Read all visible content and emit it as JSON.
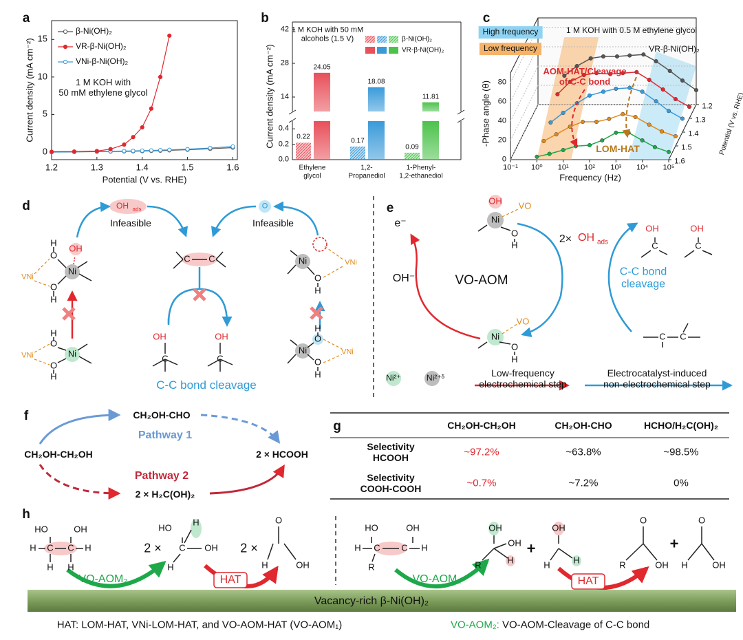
{
  "panel_labels": [
    "a",
    "b",
    "c",
    "d",
    "e",
    "f",
    "g",
    "h"
  ],
  "chart_data": [
    {
      "type": "line",
      "xlabel": "Potential (V vs. RHE)",
      "ylabel": "Current density (mA cm⁻²)",
      "annotation": "1 M KOH with\n50 mM ethylene glycol",
      "x": [
        1.2,
        1.25,
        1.3,
        1.33,
        1.36,
        1.38,
        1.4,
        1.42,
        1.44,
        1.46,
        1.5,
        1.55,
        1.6
      ],
      "series": [
        {
          "name": "β-Ni(OH)₂",
          "color": "#555555",
          "values": [
            0,
            0.03,
            0.06,
            0.08,
            0.1,
            0.12,
            0.14,
            0.17,
            0.2,
            0.24,
            0.32,
            0.45,
            0.6
          ]
        },
        {
          "name": "VR-β-Ni(OH)₂",
          "color": "#e0282e",
          "values": [
            0.05,
            0.08,
            0.15,
            0.4,
            1.0,
            2.0,
            3.3,
            5.8,
            10,
            15.5,
            null,
            null,
            null
          ]
        },
        {
          "name": "VNi-β-Ni(OH)₂",
          "color": "#3a9ad9",
          "values": [
            0.02,
            0.05,
            0.09,
            0.12,
            0.15,
            0.17,
            0.2,
            0.23,
            0.27,
            0.31,
            0.4,
            0.55,
            0.75
          ]
        }
      ],
      "xlim": [
        1.2,
        1.61
      ],
      "ylim": [
        -1,
        17.5
      ],
      "xticks": [
        1.2,
        1.3,
        1.4,
        1.5,
        1.6
      ],
      "yticks": [
        0,
        5,
        10,
        15
      ],
      "legend": "upper left"
    },
    {
      "type": "bar",
      "subtitle": "1 M KOH with 50 mM\nalcohols (1.5 V)",
      "ylabel": "Current density (mA cm⁻²)",
      "categories": [
        "Ethylene\nglycol",
        "1,2-\nPropanediol",
        "1-Phenyl-\n1,2-ethanediol"
      ],
      "category_colors": [
        "#e8505a",
        "#3a9ad9",
        "#4cc24c"
      ],
      "series": [
        {
          "name": "β-Ni(OH)₂",
          "hatched": true,
          "values": [
            0.22,
            0.17,
            0.09
          ]
        },
        {
          "name": "VR-β-Ni(OH)₂",
          "hatched": false,
          "values": [
            24.05,
            18.08,
            11.81
          ]
        }
      ],
      "ylim_lower": [
        0,
        0.5
      ],
      "yticks_lower": [
        {
          "value": 0,
          "label": "0.0"
        },
        0.2,
        0.4
      ],
      "ylim_upper": [
        8,
        42
      ],
      "yticks_upper": [
        14,
        28,
        42
      ],
      "legend": "upper right"
    },
    {
      "type": "waterfall",
      "xscale": "log",
      "xlabel": "Frequency (Hz)",
      "ylabel": "-Phase angle (θ)",
      "zlabel": "Potential (V vs. RHE)",
      "x": [
        1,
        3,
        10,
        30,
        100,
        300,
        1000,
        3000,
        10000,
        30000,
        100000
      ],
      "series": [
        {
          "z": 1.2,
          "color": "#555555",
          "values": [
            30,
            40,
            48,
            50,
            50,
            51,
            52,
            45,
            35,
            25,
            15
          ]
        },
        {
          "z": 1.3,
          "color": "#e0282e",
          "values": [
            25,
            38,
            45,
            47,
            46,
            47,
            48,
            40,
            30,
            20,
            12
          ]
        },
        {
          "z": 1.4,
          "color": "#3a9ad9",
          "values": [
            10,
            20,
            30,
            38,
            42,
            45,
            46,
            42,
            32,
            22,
            14
          ]
        },
        {
          "z": 1.5,
          "color": "#e08a1e",
          "values": [
            5,
            12,
            20,
            25,
            25,
            28,
            33,
            30,
            22,
            15,
            10
          ]
        },
        {
          "z": 1.6,
          "color": "#1ea84a",
          "values": [
            3,
            6,
            10,
            14,
            15,
            20,
            28,
            28,
            20,
            13,
            8
          ]
        }
      ],
      "xlim": [
        0.1,
        100000
      ],
      "xticks": [
        {
          "value": 0.1,
          "label": "10⁻¹"
        },
        {
          "value": 1,
          "label": "10⁰"
        },
        {
          "value": 10,
          "label": "10¹"
        },
        {
          "value": 100,
          "label": "10²"
        },
        {
          "value": 1000,
          "label": "10³"
        },
        {
          "value": 10000,
          "label": "10⁴"
        },
        {
          "value": 100000,
          "label": "10⁵"
        }
      ],
      "ylim": [
        0,
        90
      ],
      "yticks": [
        0,
        20,
        40,
        60,
        80
      ],
      "zticks": [
        1.2,
        1.3,
        1.4,
        1.5,
        1.6
      ],
      "legend_boxes": [
        {
          "label": "High frequency",
          "color": "#8fd3f2"
        },
        {
          "label": "Low frequency",
          "color": "#f5b36a"
        }
      ],
      "annotations": [
        "1 M KOH with 0.5 M ethylene glycol",
        "VR-β-Ni(OH)₂",
        "AOM-HAT/Cleavage\nof C-C bond",
        "LOM-HAT"
      ]
    }
  ],
  "diagram_d": {
    "texts": [
      "OH",
      "ads",
      "Infeasible",
      "O",
      "Infeasible",
      "C-C bond cleavage",
      "H",
      "O",
      "OH",
      "Ni",
      "O",
      "H",
      "VNi",
      "H",
      "O",
      "Ni",
      "O",
      "H",
      "VNi",
      "C",
      "C",
      "OH",
      "C",
      "OH",
      "C",
      "Ni",
      "VNi",
      "O",
      "H",
      "H",
      "O",
      "Ni",
      "O",
      "H",
      "VNi"
    ]
  },
  "diagram_e": {
    "texts": [
      "e⁻",
      "OH⁻",
      "VO-AOM",
      "2×",
      "OH",
      "ads",
      "C-C bond\ncleavage",
      "OH",
      "Ni",
      "VO",
      "O",
      "H",
      "Ni",
      "VO",
      "O",
      "H",
      "OH",
      "C",
      "OH",
      "C",
      "C",
      "C",
      "Ni²⁺",
      "Ni²⁺ᵟ",
      "Low-frequency\nelectrochemical step",
      "Electrocatalyst-induced\nnon-electrochemical step"
    ]
  },
  "diagram_f": {
    "texts": [
      "CH₂OH-CH₂OH",
      "CH₂OH-CHO",
      "Pathway 1",
      "2 × HCOOH",
      "Pathway 2",
      "2 × H₂C(OH)₂"
    ]
  },
  "table_g": {
    "columns": [
      "CH₂OH-CH₂OH",
      "CH₂OH-CHO",
      "HCHO/H₂C(OH)₂"
    ],
    "rows": [
      {
        "label": "Selectivity\nHCOOH",
        "cells": [
          "~97.2%",
          "~63.8%",
          "~98.5%"
        ]
      },
      {
        "label": "Selectivity\nCOOH-COOH",
        "cells": [
          "~0.7%",
          "~7.2%",
          "0%"
        ]
      }
    ]
  },
  "diagram_h": {
    "texts": [
      "HO",
      "OH",
      "H",
      "C",
      "C",
      "H",
      "H",
      "H",
      "2 ×",
      "HO",
      "H",
      "C",
      "OH",
      "H",
      "2 ×",
      "O",
      "H",
      "OH",
      "VO-AOM₂",
      "HAT",
      "HO",
      "OH",
      "H",
      "C",
      "C",
      "H",
      "R",
      "OH",
      "OH",
      "R",
      "H",
      "+",
      "OH",
      "H",
      "H",
      "O",
      "R",
      "OH",
      "+",
      "O",
      "H",
      "OH",
      "VO-AOM₂",
      "HAT"
    ],
    "bar_label": "Vacancy-rich β-Ni(OH)₂",
    "footer": [
      "HAT: LOM-HAT, VNi-LOM-HAT, and VO-AOM-HAT (VO-AOM₁)",
      "VO-AOM₂:",
      "VO-AOM-Cleavage of C-C bond"
    ]
  }
}
